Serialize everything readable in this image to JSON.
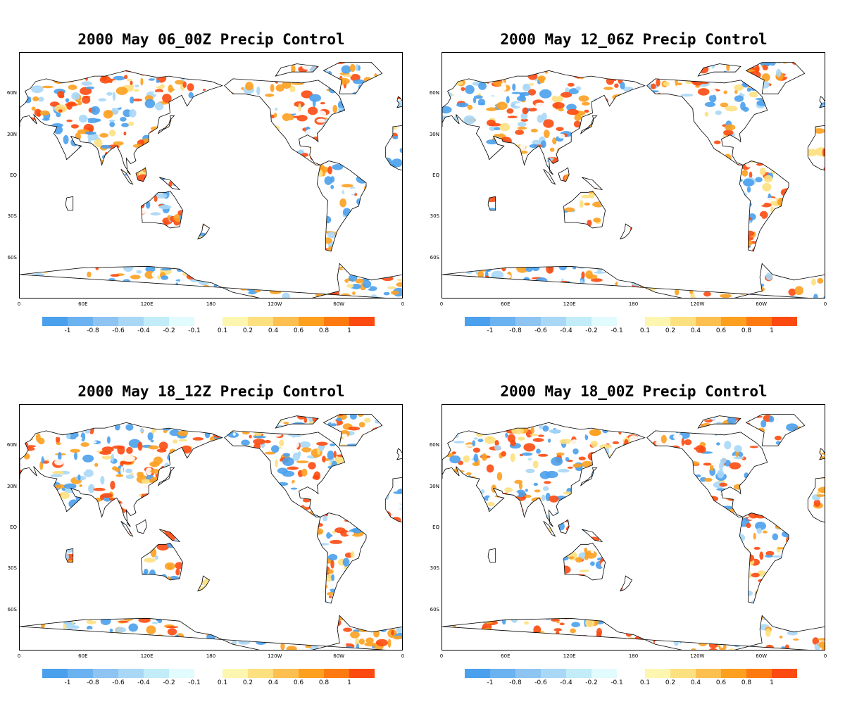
{
  "panels": [
    {
      "title": "2000 May 06_00Z Precip Control",
      "seed": 11
    },
    {
      "title": "2000 May 12_06Z Precip Control",
      "seed": 23
    },
    {
      "title": "2000 May 18_12Z Precip Control",
      "seed": 37
    },
    {
      "title": "2000 May 18_00Z Precip Control",
      "seed": 53
    }
  ],
  "axes": {
    "lon_ticks": [
      "0",
      "60E",
      "120E",
      "180",
      "120W",
      "60W",
      "0"
    ],
    "lat_ticks": [
      "60N",
      "30N",
      "EQ",
      "30S",
      "60S"
    ]
  },
  "colorbar": {
    "neg_colors": [
      "#4aa0ec",
      "#6ab2f0",
      "#8ec4f2",
      "#a9d7f6",
      "#c1ecf8",
      "#e2fbfd"
    ],
    "pos_colors": [
      "#fdf6b0",
      "#fde080",
      "#fdc050",
      "#fda020",
      "#fd7a10",
      "#fc4a10"
    ],
    "neg_labels": [
      "-1",
      "-0.8",
      "-0.6",
      "-0.4",
      "-0.2",
      "-0.1"
    ],
    "pos_labels": [
      "0.1",
      "0.2",
      "0.4",
      "0.6",
      "0.8",
      "1"
    ]
  },
  "palette": {
    "red": "#fc4a10",
    "orange": "#fda020",
    "yellow": "#fde080",
    "blue": "#4aa0ec",
    "lightblue": "#a9d7f6",
    "white": "#ffffff"
  }
}
